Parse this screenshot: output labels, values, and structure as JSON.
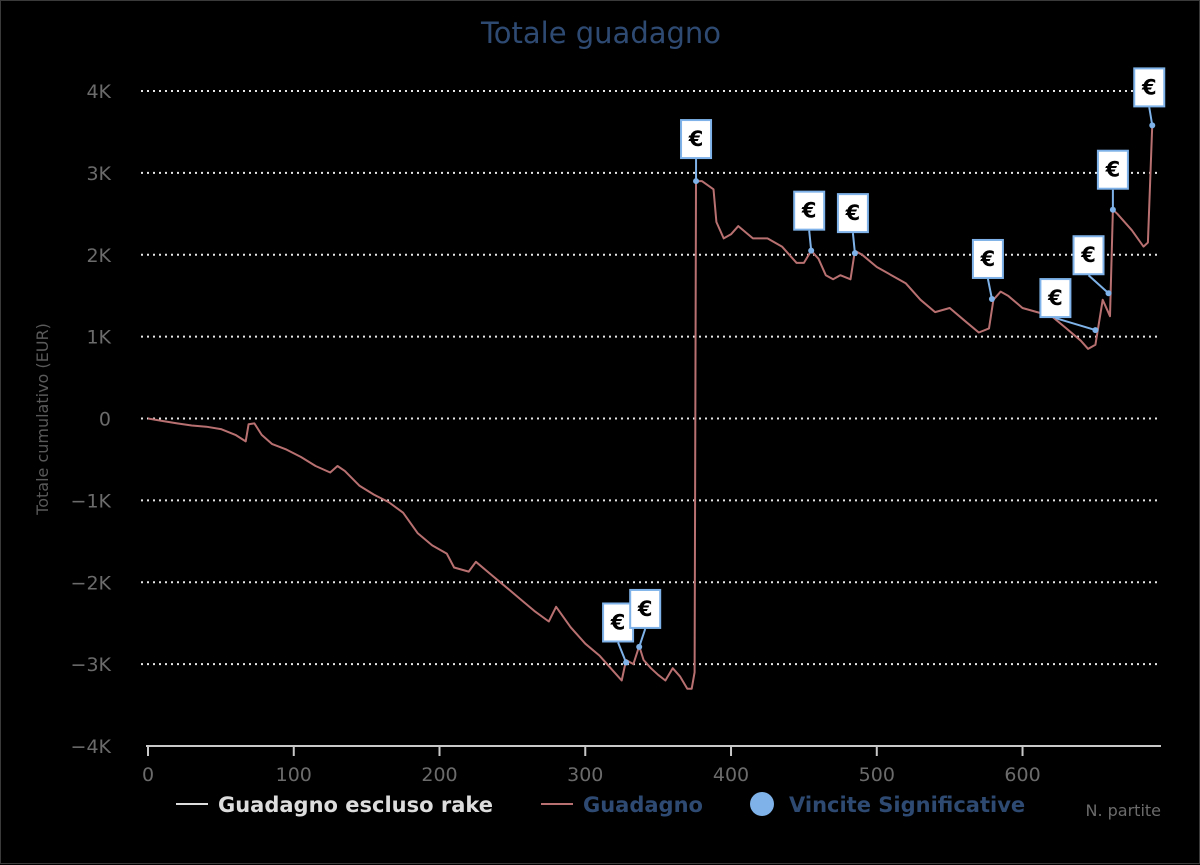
{
  "chart_data": {
    "type": "line",
    "title": "Totale guadagno",
    "ylabel": "Totale cumulativo (EUR)",
    "xlabel": "N. partite",
    "xlim": [
      0,
      695
    ],
    "ylim": [
      -4000,
      4000
    ],
    "x_ticks": [
      0,
      100,
      200,
      300,
      400,
      500,
      600
    ],
    "x_tick_labels": [
      "0",
      "100",
      "200",
      "300",
      "400",
      "500",
      "600"
    ],
    "y_ticks": [
      -4000,
      -3000,
      -2000,
      -1000,
      0,
      1000,
      2000,
      3000,
      4000
    ],
    "y_tick_labels": [
      "−4K",
      "−3K",
      "−2K",
      "−1K",
      "0",
      "1K",
      "2K",
      "3K",
      "4K"
    ],
    "grid": true,
    "legend_position": "bottom",
    "colors": {
      "background": "#000000",
      "guadagno": "#b87070",
      "escluso_rake": "#e0e0e0",
      "vincite": "#7eb2e8",
      "title": "#2e4a72"
    },
    "legend": [
      {
        "label": "Guadagno escluso rake",
        "color": "#dddddd",
        "text_color": "#dddddd",
        "symbol": "line"
      },
      {
        "label": "Guadagno",
        "color": "#b87070",
        "text_color": "#2e4a72",
        "symbol": "line"
      },
      {
        "label": "Vincite Significative",
        "color": "#7eb2e8",
        "text_color": "#2e4a72",
        "symbol": "dot"
      }
    ],
    "series": [
      {
        "name": "Guadagno",
        "points": [
          [
            0,
            0
          ],
          [
            10,
            -30
          ],
          [
            20,
            -60
          ],
          [
            30,
            -85
          ],
          [
            40,
            -100
          ],
          [
            50,
            -130
          ],
          [
            60,
            -200
          ],
          [
            67,
            -280
          ],
          [
            69,
            -70
          ],
          [
            73,
            -60
          ],
          [
            78,
            -200
          ],
          [
            85,
            -310
          ],
          [
            95,
            -380
          ],
          [
            105,
            -470
          ],
          [
            115,
            -580
          ],
          [
            125,
            -660
          ],
          [
            130,
            -580
          ],
          [
            135,
            -640
          ],
          [
            145,
            -820
          ],
          [
            155,
            -930
          ],
          [
            165,
            -1020
          ],
          [
            175,
            -1150
          ],
          [
            185,
            -1400
          ],
          [
            195,
            -1550
          ],
          [
            205,
            -1650
          ],
          [
            210,
            -1820
          ],
          [
            220,
            -1870
          ],
          [
            225,
            -1750
          ],
          [
            235,
            -1900
          ],
          [
            245,
            -2050
          ],
          [
            255,
            -2200
          ],
          [
            265,
            -2350
          ],
          [
            275,
            -2480
          ],
          [
            280,
            -2300
          ],
          [
            290,
            -2550
          ],
          [
            300,
            -2750
          ],
          [
            310,
            -2900
          ],
          [
            320,
            -3100
          ],
          [
            325,
            -3200
          ],
          [
            328,
            -2950
          ],
          [
            333,
            -3000
          ],
          [
            337,
            -2780
          ],
          [
            340,
            -2950
          ],
          [
            345,
            -3050
          ],
          [
            350,
            -3130
          ],
          [
            355,
            -3200
          ],
          [
            360,
            -3050
          ],
          [
            365,
            -3150
          ],
          [
            370,
            -3300
          ],
          [
            373,
            -3300
          ],
          [
            375,
            -3100
          ],
          [
            376,
            2900
          ],
          [
            380,
            2900
          ],
          [
            388,
            2800
          ],
          [
            390,
            2400
          ],
          [
            395,
            2200
          ],
          [
            400,
            2250
          ],
          [
            405,
            2350
          ],
          [
            415,
            2200
          ],
          [
            425,
            2200
          ],
          [
            435,
            2100
          ],
          [
            445,
            1900
          ],
          [
            450,
            1900
          ],
          [
            455,
            2050
          ],
          [
            460,
            1950
          ],
          [
            465,
            1750
          ],
          [
            470,
            1700
          ],
          [
            475,
            1750
          ],
          [
            482,
            1700
          ],
          [
            485,
            2050
          ],
          [
            490,
            2000
          ],
          [
            500,
            1850
          ],
          [
            510,
            1750
          ],
          [
            520,
            1650
          ],
          [
            530,
            1450
          ],
          [
            540,
            1300
          ],
          [
            550,
            1350
          ],
          [
            560,
            1200
          ],
          [
            570,
            1050
          ],
          [
            577,
            1100
          ],
          [
            580,
            1450
          ],
          [
            585,
            1550
          ],
          [
            590,
            1500
          ],
          [
            600,
            1350
          ],
          [
            610,
            1300
          ],
          [
            620,
            1250
          ],
          [
            630,
            1100
          ],
          [
            640,
            950
          ],
          [
            645,
            850
          ],
          [
            650,
            900
          ],
          [
            655,
            1450
          ],
          [
            660,
            1250
          ],
          [
            662,
            2550
          ],
          [
            665,
            2500
          ],
          [
            675,
            2300
          ],
          [
            683,
            2100
          ],
          [
            686,
            2150
          ],
          [
            689,
            3600
          ]
        ]
      }
    ],
    "vincite_significative": [
      {
        "x": 328,
        "y": -2980,
        "label": "€"
      },
      {
        "x": 337,
        "y": -2790,
        "label": "€"
      },
      {
        "x": 376,
        "y": 2900,
        "label": "€"
      },
      {
        "x": 455,
        "y": 2050,
        "label": "€"
      },
      {
        "x": 485,
        "y": 2020,
        "label": "€"
      },
      {
        "x": 579,
        "y": 1460,
        "label": "€"
      },
      {
        "x": 650,
        "y": 1080,
        "label": "€"
      },
      {
        "x": 659,
        "y": 1530,
        "label": "€"
      },
      {
        "x": 662,
        "y": 2550,
        "label": "€"
      },
      {
        "x": 689,
        "y": 3580,
        "label": "€"
      }
    ]
  }
}
